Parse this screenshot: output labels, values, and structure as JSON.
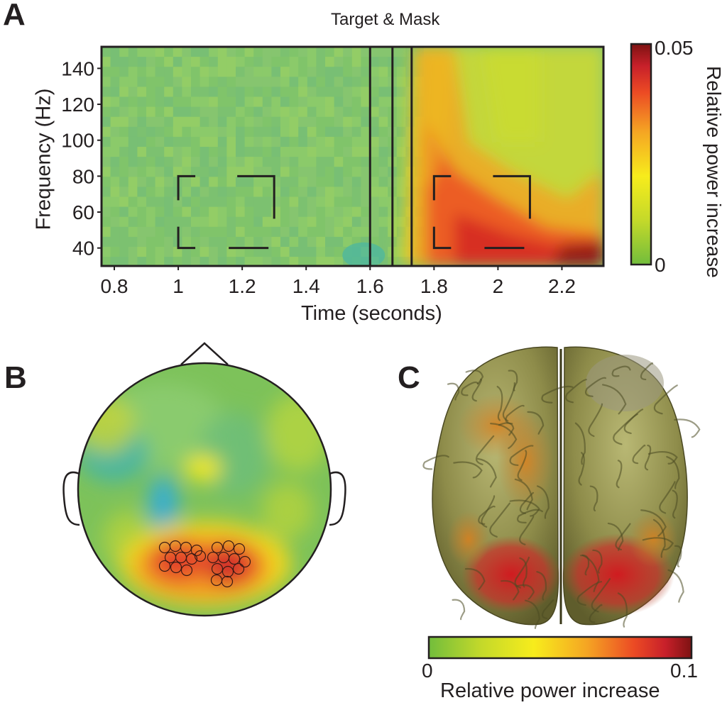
{
  "panels": {
    "a": "A",
    "b": "B",
    "c": "C"
  },
  "chart_data": [
    {
      "type": "heatmap",
      "title": "Target & Mask",
      "xlabel": "Time (seconds)",
      "ylabel": "Frequency (Hz)",
      "xlim": [
        0.76,
        2.33
      ],
      "ylim": [
        30,
        152
      ],
      "x_ticks": [
        "0.8",
        "1",
        "1.2",
        "1.4",
        "1.6",
        "1.8",
        "2",
        "2.2"
      ],
      "y_ticks": [
        "40",
        "60",
        "80",
        "100",
        "120",
        "140"
      ],
      "event_lines_seconds": [
        1.6,
        1.67,
        1.73
      ],
      "roi_windows": [
        {
          "time": [
            1.0,
            1.3
          ],
          "frequency": [
            40,
            80
          ]
        },
        {
          "time": [
            1.8,
            2.1
          ],
          "frequency": [
            40,
            80
          ]
        }
      ],
      "colorbar": {
        "min_label": "0",
        "max_label": "0.05",
        "label": "Relative power increase",
        "range": [
          0,
          0.05
        ]
      },
      "colormap": [
        "#72bd3c",
        "#c4d92a",
        "#f7ec1c",
        "#f5a623",
        "#ec4b24",
        "#c8202a",
        "#7e1212"
      ]
    },
    {
      "type": "topographic_map",
      "description_values": {
        "hot_region": "posterior",
        "peak": 0.05
      },
      "colormap_ref": "heatmap"
    },
    {
      "type": "brain_surface",
      "colorbar": {
        "min_label": "0",
        "max_label": "0.1",
        "label": "Relative power increase",
        "range": [
          0,
          0.1
        ]
      }
    }
  ]
}
